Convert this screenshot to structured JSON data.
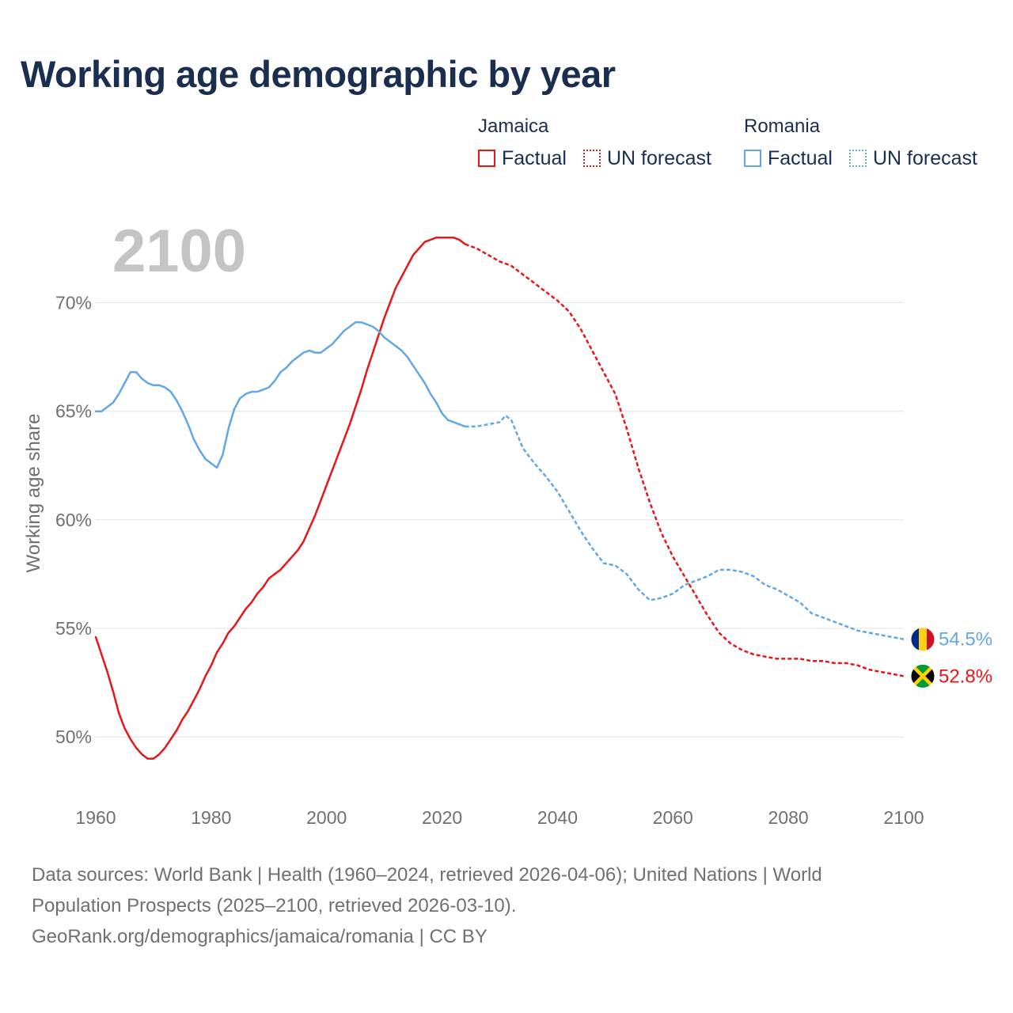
{
  "title": "Working age demographic by year",
  "legend": {
    "groups": [
      {
        "country": "Jamaica",
        "factual_label": "Factual",
        "forecast_label": "UN forecast",
        "color": "#e8161b"
      },
      {
        "country": "Romania",
        "factual_label": "Factual",
        "forecast_label": "UN forecast",
        "color": "#63a8e6"
      }
    ]
  },
  "chart_data": {
    "type": "line",
    "title": "Working age demographic by year",
    "xlabel": "",
    "ylabel": "Working age share",
    "xlim": [
      1960,
      2100
    ],
    "ylim": [
      47.2,
      73.3
    ],
    "x_ticks": [
      1960,
      1980,
      2000,
      2020,
      2040,
      2060,
      2080,
      2100
    ],
    "x_tick_labels": [
      "1960",
      "1980",
      "2000",
      "2020",
      "2040",
      "2060",
      "2080",
      "2100"
    ],
    "y_ticks": [
      50,
      55,
      60,
      65,
      70
    ],
    "y_tick_labels": [
      "50%",
      "55%",
      "60%",
      "65%",
      "70%"
    ],
    "grid": true,
    "year_watermark": "2100",
    "forecast_start_year": 2024,
    "series": [
      {
        "name": "Jamaica",
        "color": "#e8161b",
        "end_label": "52.8%",
        "flag": "jamaica",
        "points": [
          [
            1960,
            54.6
          ],
          [
            1961,
            53.8
          ],
          [
            1962,
            53.0
          ],
          [
            1963,
            52.1
          ],
          [
            1964,
            51.1
          ],
          [
            1965,
            50.4
          ],
          [
            1966,
            49.9
          ],
          [
            1967,
            49.5
          ],
          [
            1968,
            49.2
          ],
          [
            1969,
            49.0
          ],
          [
            1970,
            49.0
          ],
          [
            1971,
            49.2
          ],
          [
            1972,
            49.5
          ],
          [
            1973,
            49.9
          ],
          [
            1974,
            50.3
          ],
          [
            1975,
            50.8
          ],
          [
            1976,
            51.2
          ],
          [
            1977,
            51.7
          ],
          [
            1978,
            52.2
          ],
          [
            1979,
            52.8
          ],
          [
            1980,
            53.3
          ],
          [
            1981,
            53.9
          ],
          [
            1982,
            54.3
          ],
          [
            1983,
            54.8
          ],
          [
            1984,
            55.1
          ],
          [
            1985,
            55.5
          ],
          [
            1986,
            55.9
          ],
          [
            1987,
            56.2
          ],
          [
            1988,
            56.6
          ],
          [
            1989,
            56.9
          ],
          [
            1990,
            57.3
          ],
          [
            1991,
            57.5
          ],
          [
            1992,
            57.7
          ],
          [
            1993,
            58.0
          ],
          [
            1994,
            58.3
          ],
          [
            1995,
            58.6
          ],
          [
            1996,
            59.0
          ],
          [
            1997,
            59.6
          ],
          [
            1998,
            60.2
          ],
          [
            1999,
            60.9
          ],
          [
            2000,
            61.6
          ],
          [
            2001,
            62.3
          ],
          [
            2002,
            63.0
          ],
          [
            2003,
            63.7
          ],
          [
            2004,
            64.4
          ],
          [
            2005,
            65.2
          ],
          [
            2006,
            66.0
          ],
          [
            2007,
            66.9
          ],
          [
            2008,
            67.7
          ],
          [
            2009,
            68.5
          ],
          [
            2010,
            69.3
          ],
          [
            2011,
            70.0
          ],
          [
            2012,
            70.7
          ],
          [
            2013,
            71.2
          ],
          [
            2014,
            71.7
          ],
          [
            2015,
            72.2
          ],
          [
            2016,
            72.5
          ],
          [
            2017,
            72.8
          ],
          [
            2018,
            72.9
          ],
          [
            2019,
            73.0
          ],
          [
            2020,
            73.0
          ],
          [
            2021,
            73.0
          ],
          [
            2022,
            73.0
          ],
          [
            2023,
            72.9
          ],
          [
            2024,
            72.7
          ],
          [
            2026,
            72.5
          ],
          [
            2028,
            72.2
          ],
          [
            2030,
            71.9
          ],
          [
            2032,
            71.7
          ],
          [
            2034,
            71.3
          ],
          [
            2036,
            70.9
          ],
          [
            2038,
            70.5
          ],
          [
            2040,
            70.1
          ],
          [
            2042,
            69.6
          ],
          [
            2044,
            68.8
          ],
          [
            2046,
            67.8
          ],
          [
            2048,
            66.8
          ],
          [
            2050,
            65.8
          ],
          [
            2052,
            64.2
          ],
          [
            2054,
            62.4
          ],
          [
            2056,
            60.8
          ],
          [
            2058,
            59.4
          ],
          [
            2060,
            58.3
          ],
          [
            2062,
            57.4
          ],
          [
            2064,
            56.5
          ],
          [
            2066,
            55.6
          ],
          [
            2068,
            54.8
          ],
          [
            2070,
            54.3
          ],
          [
            2072,
            54.0
          ],
          [
            2074,
            53.8
          ],
          [
            2076,
            53.7
          ],
          [
            2078,
            53.6
          ],
          [
            2080,
            53.6
          ],
          [
            2082,
            53.6
          ],
          [
            2084,
            53.5
          ],
          [
            2086,
            53.5
          ],
          [
            2088,
            53.4
          ],
          [
            2090,
            53.4
          ],
          [
            2092,
            53.3
          ],
          [
            2094,
            53.1
          ],
          [
            2096,
            53.0
          ],
          [
            2098,
            52.9
          ],
          [
            2100,
            52.8
          ]
        ]
      },
      {
        "name": "Romania",
        "color": "#63a8e6",
        "end_label": "54.5%",
        "flag": "romania",
        "points": [
          [
            1960,
            65.0
          ],
          [
            1961,
            65.0
          ],
          [
            1962,
            65.2
          ],
          [
            1963,
            65.4
          ],
          [
            1964,
            65.8
          ],
          [
            1965,
            66.3
          ],
          [
            1966,
            66.8
          ],
          [
            1967,
            66.8
          ],
          [
            1968,
            66.5
          ],
          [
            1969,
            66.3
          ],
          [
            1970,
            66.2
          ],
          [
            1971,
            66.2
          ],
          [
            1972,
            66.1
          ],
          [
            1973,
            65.9
          ],
          [
            1974,
            65.5
          ],
          [
            1975,
            65.0
          ],
          [
            1976,
            64.4
          ],
          [
            1977,
            63.7
          ],
          [
            1978,
            63.2
          ],
          [
            1979,
            62.8
          ],
          [
            1980,
            62.6
          ],
          [
            1981,
            62.4
          ],
          [
            1982,
            63.0
          ],
          [
            1983,
            64.2
          ],
          [
            1984,
            65.1
          ],
          [
            1985,
            65.6
          ],
          [
            1986,
            65.8
          ],
          [
            1987,
            65.9
          ],
          [
            1988,
            65.9
          ],
          [
            1989,
            66.0
          ],
          [
            1990,
            66.1
          ],
          [
            1991,
            66.4
          ],
          [
            1992,
            66.8
          ],
          [
            1993,
            67.0
          ],
          [
            1994,
            67.3
          ],
          [
            1995,
            67.5
          ],
          [
            1996,
            67.7
          ],
          [
            1997,
            67.8
          ],
          [
            1998,
            67.7
          ],
          [
            1999,
            67.7
          ],
          [
            2000,
            67.9
          ],
          [
            2001,
            68.1
          ],
          [
            2002,
            68.4
          ],
          [
            2003,
            68.7
          ],
          [
            2004,
            68.9
          ],
          [
            2005,
            69.1
          ],
          [
            2006,
            69.1
          ],
          [
            2007,
            69.0
          ],
          [
            2008,
            68.9
          ],
          [
            2009,
            68.7
          ],
          [
            2010,
            68.4
          ],
          [
            2011,
            68.2
          ],
          [
            2012,
            68.0
          ],
          [
            2013,
            67.8
          ],
          [
            2014,
            67.5
          ],
          [
            2015,
            67.1
          ],
          [
            2016,
            66.7
          ],
          [
            2017,
            66.3
          ],
          [
            2018,
            65.8
          ],
          [
            2019,
            65.4
          ],
          [
            2020,
            64.9
          ],
          [
            2021,
            64.6
          ],
          [
            2022,
            64.5
          ],
          [
            2023,
            64.4
          ],
          [
            2024,
            64.3
          ],
          [
            2026,
            64.3
          ],
          [
            2028,
            64.4
          ],
          [
            2030,
            64.5
          ],
          [
            2031,
            64.8
          ],
          [
            2032,
            64.6
          ],
          [
            2034,
            63.3
          ],
          [
            2036,
            62.6
          ],
          [
            2038,
            62.0
          ],
          [
            2040,
            61.3
          ],
          [
            2042,
            60.4
          ],
          [
            2044,
            59.5
          ],
          [
            2046,
            58.7
          ],
          [
            2048,
            58.0
          ],
          [
            2050,
            57.9
          ],
          [
            2052,
            57.5
          ],
          [
            2054,
            56.8
          ],
          [
            2056,
            56.3
          ],
          [
            2058,
            56.4
          ],
          [
            2060,
            56.6
          ],
          [
            2062,
            57.0
          ],
          [
            2064,
            57.2
          ],
          [
            2066,
            57.4
          ],
          [
            2068,
            57.7
          ],
          [
            2070,
            57.7
          ],
          [
            2072,
            57.6
          ],
          [
            2074,
            57.4
          ],
          [
            2076,
            57.0
          ],
          [
            2078,
            56.8
          ],
          [
            2080,
            56.5
          ],
          [
            2082,
            56.2
          ],
          [
            2084,
            55.7
          ],
          [
            2086,
            55.5
          ],
          [
            2088,
            55.3
          ],
          [
            2090,
            55.1
          ],
          [
            2092,
            54.9
          ],
          [
            2094,
            54.8
          ],
          [
            2096,
            54.7
          ],
          [
            2098,
            54.6
          ],
          [
            2100,
            54.5
          ]
        ]
      }
    ]
  },
  "footer": {
    "line1": "Data sources: World Bank | Health (1960–2024, retrieved 2026-04-06); United Nations | World",
    "line2": "Population Prospects (2025–2100, retrieved 2026-03-10).",
    "line3": "GeoRank.org/demographics/jamaica/romania | CC BY"
  }
}
